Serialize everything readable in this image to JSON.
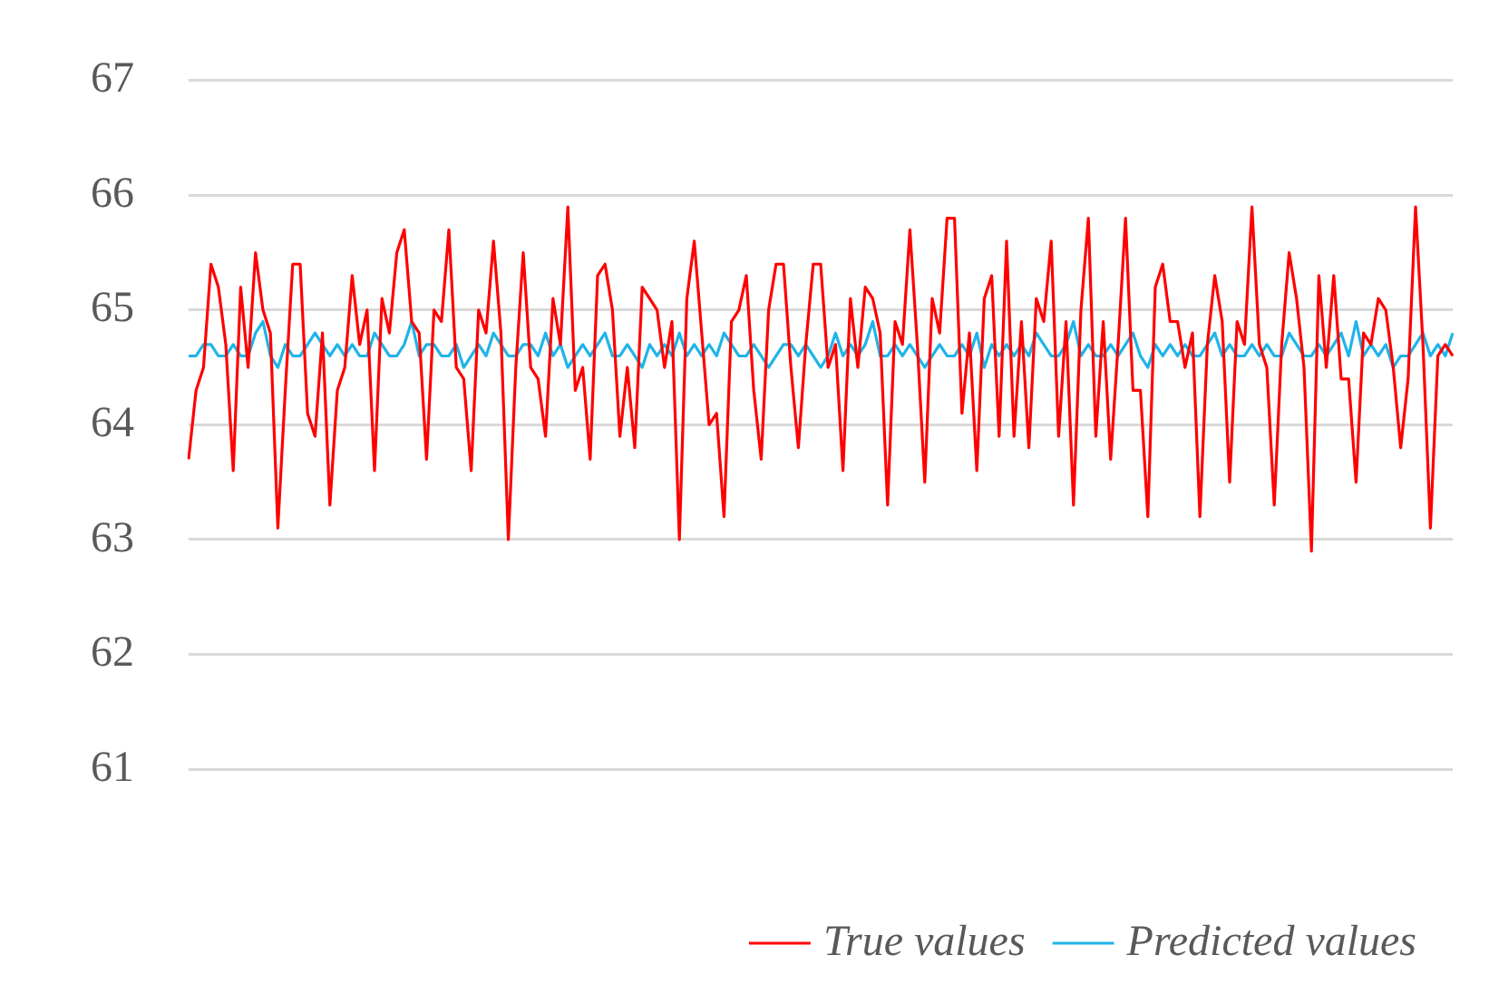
{
  "chart_data": {
    "type": "line",
    "categories": [
      null,
      null,
      null,
      null,
      null,
      null,
      null,
      null,
      null,
      null,
      null,
      null,
      null,
      null,
      null,
      null,
      null,
      null,
      null,
      null,
      null,
      null,
      null,
      null,
      null,
      null,
      null,
      null,
      null,
      null,
      null,
      null,
      null,
      null,
      null,
      null,
      null,
      null,
      null,
      null,
      null,
      null,
      null,
      null,
      null,
      null,
      null,
      null,
      null,
      null,
      null,
      null,
      null,
      null,
      null,
      null,
      null,
      null,
      null,
      null,
      null,
      null,
      null,
      null,
      null,
      null,
      null,
      null,
      null,
      null,
      null,
      null,
      null,
      null,
      null,
      null,
      null,
      null,
      null,
      null,
      null,
      null,
      null,
      null,
      null,
      null,
      null,
      null,
      null,
      null,
      null,
      null,
      null,
      null,
      null,
      null,
      null,
      null,
      null,
      null,
      null,
      null,
      null,
      null,
      null,
      null,
      null,
      null,
      null,
      null,
      null,
      null,
      null,
      null,
      null,
      null,
      null,
      null,
      null,
      null,
      null,
      null,
      null,
      null,
      null,
      null,
      null,
      null,
      null,
      null,
      null,
      null,
      null,
      null,
      null,
      null,
      null,
      null,
      null,
      null,
      null,
      null,
      null,
      null,
      null,
      null,
      null,
      null,
      null,
      null,
      null,
      null,
      null,
      null,
      null,
      null,
      null,
      null,
      null,
      null,
      null,
      null,
      null,
      null,
      null,
      null,
      null,
      null,
      null,
      null,
      null
    ],
    "series": [
      {
        "name": "True values",
        "color": "#ff0000",
        "values": [
          63.7,
          64.3,
          64.5,
          65.4,
          65.2,
          64.7,
          63.6,
          65.2,
          64.5,
          65.5,
          65.0,
          64.8,
          63.1,
          64.3,
          65.4,
          65.4,
          64.1,
          63.9,
          64.8,
          63.3,
          64.3,
          64.5,
          65.3,
          64.7,
          65.0,
          63.6,
          65.1,
          64.8,
          65.5,
          65.7,
          64.9,
          64.8,
          63.7,
          65.0,
          64.9,
          65.7,
          64.5,
          64.4,
          63.6,
          65.0,
          64.8,
          65.6,
          64.8,
          63.0,
          64.5,
          65.5,
          64.5,
          64.4,
          63.9,
          65.1,
          64.7,
          65.9,
          64.3,
          64.5,
          63.7,
          65.3,
          65.4,
          65.0,
          63.9,
          64.5,
          63.8,
          65.2,
          65.1,
          65.0,
          64.5,
          64.9,
          63.0,
          65.1,
          65.6,
          64.8,
          64.0,
          64.1,
          63.2,
          64.9,
          65.0,
          65.3,
          64.3,
          63.7,
          65.0,
          65.4,
          65.4,
          64.5,
          63.8,
          64.7,
          65.4,
          65.4,
          64.5,
          64.7,
          63.6,
          65.1,
          64.5,
          65.2,
          65.1,
          64.8,
          63.3,
          64.9,
          64.7,
          65.7,
          64.7,
          63.5,
          65.1,
          64.8,
          65.8,
          65.8,
          64.1,
          64.8,
          63.6,
          65.1,
          65.3,
          63.9,
          65.6,
          63.9,
          64.9,
          63.8,
          65.1,
          64.9,
          65.6,
          63.9,
          64.9,
          63.3,
          65.0,
          65.8,
          63.9,
          64.9,
          63.7,
          64.7,
          65.8,
          64.3,
          64.3,
          63.2,
          65.2,
          65.4,
          64.9,
          64.9,
          64.5,
          64.8,
          63.2,
          64.7,
          65.3,
          64.9,
          63.5,
          64.9,
          64.7,
          65.9,
          64.7,
          64.5,
          63.3,
          64.7,
          65.5,
          65.1,
          64.5,
          62.9,
          65.3,
          64.5,
          65.3,
          64.4,
          64.4,
          63.5,
          64.8,
          64.7,
          65.1,
          65.0,
          64.5,
          63.8,
          64.4,
          65.9,
          64.7,
          63.1,
          64.6,
          64.7,
          64.6
        ]
      },
      {
        "name": "Predicted values",
        "color": "#1fb4e8",
        "values": [
          64.6,
          64.6,
          64.7,
          64.7,
          64.6,
          64.6,
          64.7,
          64.6,
          64.6,
          64.8,
          64.9,
          64.6,
          64.5,
          64.7,
          64.6,
          64.6,
          64.7,
          64.8,
          64.7,
          64.6,
          64.7,
          64.6,
          64.7,
          64.6,
          64.6,
          64.8,
          64.7,
          64.6,
          64.6,
          64.7,
          64.9,
          64.6,
          64.7,
          64.7,
          64.6,
          64.6,
          64.7,
          64.5,
          64.6,
          64.7,
          64.6,
          64.8,
          64.7,
          64.6,
          64.6,
          64.7,
          64.7,
          64.6,
          64.8,
          64.6,
          64.7,
          64.5,
          64.6,
          64.7,
          64.6,
          64.7,
          64.8,
          64.6,
          64.6,
          64.7,
          64.6,
          64.5,
          64.7,
          64.6,
          64.7,
          64.6,
          64.8,
          64.6,
          64.7,
          64.6,
          64.7,
          64.6,
          64.8,
          64.7,
          64.6,
          64.6,
          64.7,
          64.6,
          64.5,
          64.6,
          64.7,
          64.7,
          64.6,
          64.7,
          64.6,
          64.5,
          64.6,
          64.8,
          64.6,
          64.7,
          64.6,
          64.7,
          64.9,
          64.6,
          64.6,
          64.7,
          64.6,
          64.7,
          64.6,
          64.5,
          64.6,
          64.7,
          64.6,
          64.6,
          64.7,
          64.6,
          64.8,
          64.5,
          64.7,
          64.6,
          64.7,
          64.6,
          64.7,
          64.6,
          64.8,
          64.7,
          64.6,
          64.6,
          64.7,
          64.9,
          64.6,
          64.7,
          64.6,
          64.6,
          64.7,
          64.6,
          64.7,
          64.8,
          64.6,
          64.5,
          64.7,
          64.6,
          64.7,
          64.6,
          64.7,
          64.6,
          64.6,
          64.7,
          64.8,
          64.6,
          64.7,
          64.6,
          64.6,
          64.7,
          64.6,
          64.7,
          64.6,
          64.6,
          64.8,
          64.7,
          64.6,
          64.6,
          64.7,
          64.6,
          64.7,
          64.8,
          64.6,
          64.9,
          64.6,
          64.7,
          64.6,
          64.7,
          64.5,
          64.6,
          64.6,
          64.7,
          64.8,
          64.6,
          64.7,
          64.6,
          64.8
        ]
      }
    ],
    "ylim": [
      61,
      67
    ],
    "yticks": [
      61,
      62,
      63,
      64,
      65,
      66,
      67
    ],
    "grid": "y",
    "legend": "bottom right",
    "tick_labels": "y"
  }
}
